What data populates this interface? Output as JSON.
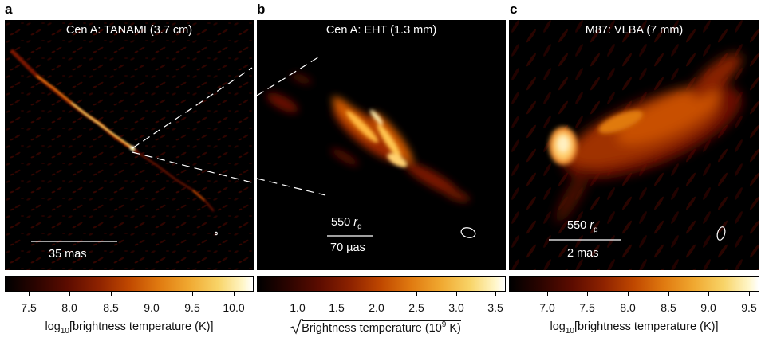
{
  "panels": [
    {
      "letter": "a",
      "title": "Cen A: TANAMI (3.7 cm)",
      "scale_label": "35 mas"
    },
    {
      "letter": "b",
      "title": "Cen A: EHT (1.3 mm)",
      "scale_top_value": "550",
      "scale_top_unit": "r",
      "scale_top_sub": "g",
      "scale_label": "70 µas"
    },
    {
      "letter": "c",
      "title": "M87: VLBA (7 mm)",
      "scale_top_value": "550",
      "scale_top_unit": "r",
      "scale_top_sub": "g",
      "scale_label": "2 mas"
    }
  ],
  "colorbars": [
    {
      "ticks": [
        "7.5",
        "8.0",
        "8.5",
        "9.0",
        "9.5",
        "10.0"
      ],
      "label_prefix": "log",
      "label_sub": "10",
      "label_rest": "[brightness temperature (K)]"
    },
    {
      "ticks": [
        "1.0",
        "1.5",
        "2.0",
        "2.5",
        "3.0",
        "3.5"
      ],
      "label_rest": "Brightness temperature (10",
      "label_sup": "9",
      "label_end": " K)"
    },
    {
      "ticks": [
        "7.0",
        "7.5",
        "8.0",
        "8.5",
        "9.0",
        "9.5"
      ],
      "label_prefix": "log",
      "label_sub": "10",
      "label_rest": "[brightness temperature (K)]"
    }
  ],
  "colors": {
    "colormap_low": "#000000",
    "colormap_mid": "#c04800",
    "colormap_high": "#ffffff",
    "annotation": "#ffffff"
  }
}
